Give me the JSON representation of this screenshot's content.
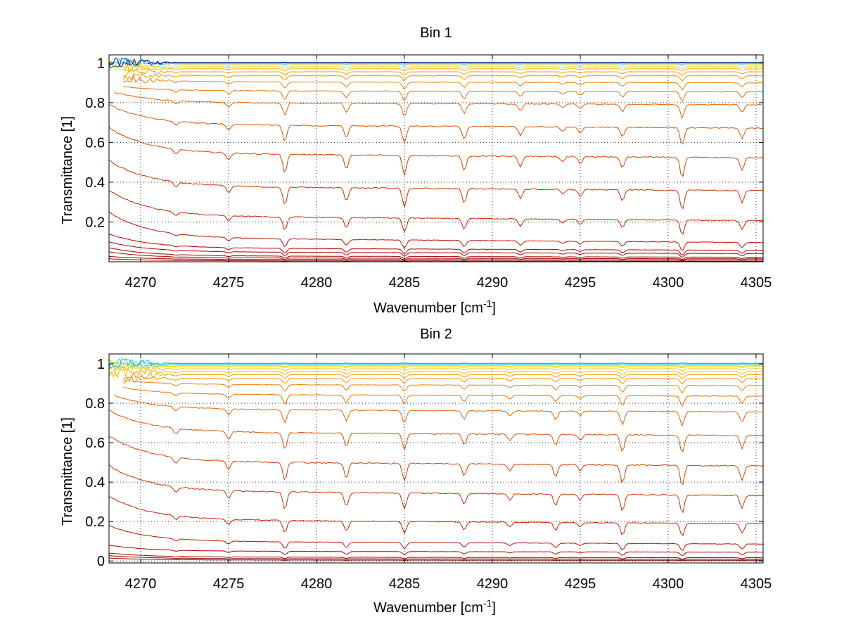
{
  "chart_data": [
    {
      "type": "line",
      "title": "Bin 1",
      "xlabel": "Wavenumber [cm",
      "xlabel_sup": "-1",
      "xlabel_close": "]",
      "ylabel": "Transmittance [1]",
      "xlim": [
        4268.2,
        4305.4
      ],
      "ylim": [
        0,
        1.04
      ],
      "xticks": [
        4270,
        4275,
        4280,
        4285,
        4290,
        4295,
        4300,
        4305
      ],
      "xtick_labels": [
        "4270",
        "4275",
        "4280",
        "4285",
        "4290",
        "4295",
        "4300",
        "4305"
      ],
      "yticks": [
        0.2,
        0.4,
        0.6,
        0.8,
        1
      ],
      "ytick_labels": [
        "0.2",
        "0.4",
        "0.6",
        "0.8",
        "1"
      ],
      "grid": true,
      "dips": [
        {
          "x": 4272.0,
          "depth": 0.25
        },
        {
          "x": 4275.0,
          "depth": 0.35
        },
        {
          "x": 4278.2,
          "depth": 0.9
        },
        {
          "x": 4281.7,
          "depth": 0.7
        },
        {
          "x": 4285.0,
          "depth": 0.95
        },
        {
          "x": 4288.4,
          "depth": 0.75
        },
        {
          "x": 4291.6,
          "depth": 0.5
        },
        {
          "x": 4294.0,
          "depth": 0.25
        },
        {
          "x": 4295.0,
          "depth": 0.35
        },
        {
          "x": 4297.4,
          "depth": 0.55
        },
        {
          "x": 4300.8,
          "depth": 1.0
        },
        {
          "x": 4304.2,
          "depth": 0.6
        }
      ],
      "noise_until": 4272.0,
      "series": [
        {
          "level": 0.005,
          "start": 4268.2,
          "excess": 0.01,
          "color": "#8b0000"
        },
        {
          "level": 0.012,
          "start": 4268.2,
          "excess": 0.015,
          "color": "#8b0000"
        },
        {
          "level": 0.02,
          "start": 4268.2,
          "excess": 0.03,
          "color": "#a50000"
        },
        {
          "level": 0.03,
          "start": 4268.2,
          "excess": 0.04,
          "color": "#a50000"
        },
        {
          "level": 0.05,
          "start": 4268.2,
          "excess": 0.05,
          "color": "#b40000"
        },
        {
          "level": 0.07,
          "start": 4268.2,
          "excess": 0.07,
          "color": "#b40000"
        },
        {
          "level": 0.12,
          "start": 4268.2,
          "excess": 0.13,
          "color": "#c21000"
        },
        {
          "level": 0.23,
          "start": 4268.2,
          "excess": 0.13,
          "color": "#c82000"
        },
        {
          "level": 0.38,
          "start": 4268.2,
          "excess": 0.13,
          "color": "#cc3000"
        },
        {
          "level": 0.545,
          "start": 4268.2,
          "excess": 0.13,
          "color": "#d64000"
        },
        {
          "level": 0.69,
          "start": 4268.2,
          "excess": 0.1,
          "color": "#e05000"
        },
        {
          "level": 0.8,
          "start": 4268.5,
          "excess": 0.06,
          "color": "#e86000"
        },
        {
          "level": 0.86,
          "start": 4269.0,
          "excess": 0.03,
          "color": "#ee7000"
        },
        {
          "level": 0.905,
          "start": 4269.0,
          "excess": 0.03,
          "color": "#f28000"
        },
        {
          "level": 0.935,
          "start": 4269.0,
          "excess": 0.0,
          "color": "#f59000"
        },
        {
          "level": 0.955,
          "start": 4269.0,
          "excess": 0.0,
          "color": "#f8a000"
        },
        {
          "level": 0.97,
          "start": 4269.0,
          "excess": 0.0,
          "color": "#fab400"
        },
        {
          "level": 0.98,
          "start": 4268.2,
          "excess": 0.0,
          "color": "#fcc800"
        },
        {
          "level": 0.99,
          "start": 4268.2,
          "excess": 0.0,
          "color": "#ffd800"
        },
        {
          "level": 0.995,
          "start": 4268.2,
          "excess": 0.0,
          "color": "#40c8ff"
        },
        {
          "level": 1.0,
          "start": 4268.2,
          "excess": 0.0,
          "color": "#0050c0"
        },
        {
          "level": 1.002,
          "start": 4268.2,
          "excess": 0.0,
          "color": "#00208c"
        }
      ]
    },
    {
      "type": "line",
      "title": "Bin 2",
      "xlabel": "Wavenumber [cm",
      "xlabel_sup": "-1",
      "xlabel_close": "]",
      "ylabel": "Transmittance [1]",
      "xlim": [
        4268.2,
        4305.4
      ],
      "ylim": [
        -0.01,
        1.05
      ],
      "xticks": [
        4270,
        4275,
        4280,
        4285,
        4290,
        4295,
        4300,
        4305
      ],
      "xtick_labels": [
        "4270",
        "4275",
        "4280",
        "4285",
        "4290",
        "4295",
        "4300",
        "4305"
      ],
      "yticks": [
        0,
        0.2,
        0.4,
        0.6,
        0.8,
        1
      ],
      "ytick_labels": [
        "0",
        "0.2",
        "0.4",
        "0.6",
        "0.8",
        "1"
      ],
      "grid": true,
      "dips": [
        {
          "x": 4272.0,
          "depth": 0.3
        },
        {
          "x": 4275.0,
          "depth": 0.4
        },
        {
          "x": 4278.2,
          "depth": 0.9
        },
        {
          "x": 4281.7,
          "depth": 0.75
        },
        {
          "x": 4285.0,
          "depth": 0.85
        },
        {
          "x": 4288.4,
          "depth": 0.6
        },
        {
          "x": 4291.0,
          "depth": 0.35
        },
        {
          "x": 4293.6,
          "depth": 0.6
        },
        {
          "x": 4295.0,
          "depth": 0.3
        },
        {
          "x": 4297.4,
          "depth": 0.9
        },
        {
          "x": 4300.8,
          "depth": 0.95
        },
        {
          "x": 4304.2,
          "depth": 0.7
        }
      ],
      "noise_until": 4272.0,
      "series": [
        {
          "level": 0.005,
          "start": 4268.2,
          "excess": 0.01,
          "color": "#8b0000"
        },
        {
          "level": 0.012,
          "start": 4268.2,
          "excess": 0.015,
          "color": "#8b0000"
        },
        {
          "level": 0.02,
          "start": 4268.2,
          "excess": 0.02,
          "color": "#a50000"
        },
        {
          "level": 0.05,
          "start": 4268.2,
          "excess": 0.03,
          "color": "#b40000"
        },
        {
          "level": 0.1,
          "start": 4268.2,
          "excess": 0.08,
          "color": "#c21000"
        },
        {
          "level": 0.21,
          "start": 4268.2,
          "excess": 0.12,
          "color": "#c82000"
        },
        {
          "level": 0.355,
          "start": 4268.2,
          "excess": 0.13,
          "color": "#cc3000"
        },
        {
          "level": 0.505,
          "start": 4268.2,
          "excess": 0.13,
          "color": "#d64000"
        },
        {
          "level": 0.655,
          "start": 4268.2,
          "excess": 0.11,
          "color": "#e05000"
        },
        {
          "level": 0.77,
          "start": 4268.5,
          "excess": 0.08,
          "color": "#e86000"
        },
        {
          "level": 0.845,
          "start": 4269.0,
          "excess": 0.05,
          "color": "#ee7000"
        },
        {
          "level": 0.895,
          "start": 4269.0,
          "excess": 0.03,
          "color": "#f28000"
        },
        {
          "level": 0.925,
          "start": 4269.0,
          "excess": 0.0,
          "color": "#f59000"
        },
        {
          "level": 0.945,
          "start": 4269.0,
          "excess": 0.0,
          "color": "#f8a000"
        },
        {
          "level": 0.96,
          "start": 4268.2,
          "excess": 0.0,
          "color": "#fab400"
        },
        {
          "level": 0.975,
          "start": 4268.2,
          "excess": 0.0,
          "color": "#fcc800"
        },
        {
          "level": 0.985,
          "start": 4268.2,
          "excess": 0.0,
          "color": "#ffd800"
        },
        {
          "level": 0.99,
          "start": 4268.2,
          "excess": 0.0,
          "color": "#d8e000"
        },
        {
          "level": 0.995,
          "start": 4268.2,
          "excess": 0.0,
          "color": "#60d8c0"
        },
        {
          "level": 1.0,
          "start": 4268.2,
          "excess": 0.0,
          "color": "#40c8ff"
        },
        {
          "level": 1.003,
          "start": 4268.2,
          "excess": 0.0,
          "color": "#20b8e8"
        }
      ]
    }
  ]
}
